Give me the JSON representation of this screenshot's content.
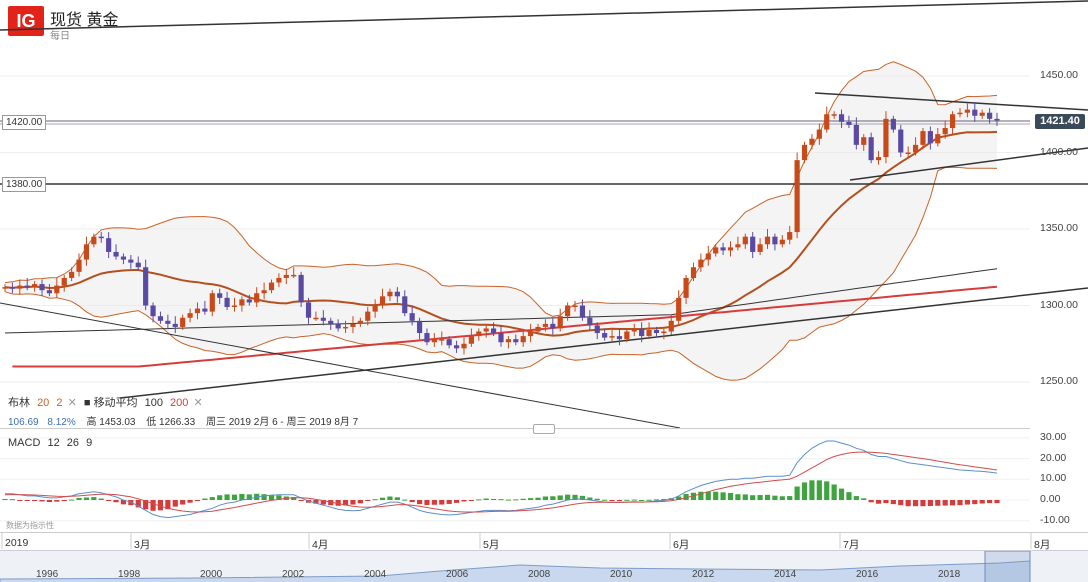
{
  "header": {
    "logo": "IG",
    "title": "现货 黄金",
    "interval": "每日"
  },
  "colors": {
    "bull": "#c84a1a",
    "bear": "#5b4aa2",
    "bb": "#c8642a",
    "ma100": "#333333",
    "ma200": "#d63c3c",
    "macd": "#5b8fc7",
    "signal": "#d44c4c",
    "hist_pos": "#3fa33f",
    "hist_neg": "#d43c3c"
  },
  "labels": {
    "h1420": "1420.00",
    "h1380": "1380.00",
    "price": "1421.40"
  },
  "legend": {
    "bb_name": "布林",
    "bb_p1": "20",
    "bb_p2": "2",
    "ma_name": "移动平均",
    "ma_p1": "100",
    "ma_p2": "200",
    "val1": "106.69",
    "val2": "8.12%",
    "high_lab": "高",
    "high": "1453.03",
    "low_lab": "低",
    "low": "1266.33",
    "range": "周三 2019 2月 6 - 周三 2019 8月 7",
    "macd_name": "MACD",
    "macd_p1": "12",
    "macd_p2": "26",
    "macd_p3": "9",
    "delayed": "数据为指示性"
  },
  "chart_data": [
    {
      "type": "candlestick",
      "title": "现货 黄金",
      "interval": "每日",
      "y_ticks": [
        1250,
        1300,
        1350,
        1400,
        1450
      ],
      "ylim": [
        1225,
        1462
      ],
      "x_ticks": [
        "2019",
        "3月",
        "4月",
        "5月",
        "6月",
        "7月",
        "8月"
      ],
      "last_price": 1421.4,
      "high": 1453.03,
      "low": 1266.33,
      "range": "周三 2019 2月 6 - 周三 2019 8月 7",
      "indicators": [
        "布林 20 2",
        "移动平均 100 200"
      ],
      "closes": [
        1312,
        1311,
        1313,
        1312,
        1314,
        1310,
        1308,
        1313,
        1318,
        1322,
        1330,
        1340,
        1345,
        1344,
        1335,
        1332,
        1330,
        1328,
        1325,
        1300,
        1293,
        1290,
        1288,
        1286,
        1292,
        1295,
        1298,
        1296,
        1308,
        1305,
        1299,
        1300,
        1304,
        1302,
        1308,
        1310,
        1315,
        1318,
        1320,
        1320,
        1302,
        1292,
        1292,
        1290,
        1288,
        1285,
        1286,
        1288,
        1290,
        1296,
        1300,
        1306,
        1309,
        1306,
        1295,
        1290,
        1282,
        1276,
        1278,
        1278,
        1274,
        1272,
        1275,
        1280,
        1283,
        1285,
        1282,
        1276,
        1278,
        1276,
        1280,
        1283,
        1286,
        1288,
        1285,
        1293,
        1300,
        1300,
        1292,
        1287,
        1282,
        1279,
        1280,
        1278,
        1283,
        1285,
        1280,
        1284,
        1282,
        1283,
        1290,
        1305,
        1318,
        1325,
        1330,
        1334,
        1338,
        1336,
        1338,
        1340,
        1345,
        1335,
        1340,
        1345,
        1340,
        1343,
        1348,
        1395,
        1405,
        1409,
        1415,
        1425,
        1425,
        1420,
        1418,
        1405,
        1410,
        1395,
        1397,
        1422,
        1415,
        1400,
        1400,
        1405,
        1414,
        1406,
        1412,
        1416,
        1425,
        1426,
        1428,
        1424,
        1426,
        1422,
        1421.4
      ],
      "macd": [
        3,
        3,
        2.5,
        2,
        2,
        1.5,
        1,
        1,
        1.5,
        2,
        3,
        3.5,
        4,
        3.5,
        2.5,
        1.5,
        0,
        -1,
        -3,
        -5,
        -7,
        -8,
        -8.5,
        -8,
        -7.5,
        -7,
        -6,
        -5,
        -4,
        -2.5,
        -1.5,
        -1,
        0,
        0.5,
        1.5,
        2,
        2.3,
        2.5,
        2.5,
        2.5,
        1,
        -0.5,
        -1.5,
        -2.5,
        -3.5,
        -4.5,
        -5,
        -5.2,
        -5,
        -4,
        -3,
        -2,
        -1,
        -1,
        -2,
        -3.5,
        -5,
        -6,
        -6.5,
        -7,
        -7.2,
        -7,
        -6.5,
        -6,
        -5.5,
        -5,
        -5,
        -5,
        -5.2,
        -5,
        -4.5,
        -4,
        -3.5,
        -2.5,
        -2,
        -1,
        0,
        0.5,
        0.5,
        0,
        -0.5,
        -1,
        -1.2,
        -1.2,
        -1,
        -0.8,
        -1,
        -0.8,
        -0.5,
        -0.2,
        0.5,
        2,
        4,
        5.5,
        7,
        8,
        9,
        9.5,
        10,
        10,
        10.5,
        10.5,
        11,
        11.5,
        11.5,
        11.5,
        12,
        18,
        22,
        25,
        27,
        28.5,
        28.5,
        27.5,
        26.5,
        25,
        24,
        22,
        21,
        21,
        20,
        19,
        18,
        17.5,
        17,
        16.5,
        16,
        15.5,
        15,
        14.5,
        14.3,
        14,
        13.8,
        13.5,
        13
      ],
      "signal": [
        2.5,
        2.6,
        2.6,
        2.5,
        2.4,
        2.2,
        2,
        1.8,
        1.7,
        1.8,
        2,
        2.3,
        2.6,
        2.8,
        2.8,
        2.6,
        2.1,
        1.5,
        0.6,
        -0.5,
        -1.8,
        -3,
        -4,
        -4.8,
        -5.3,
        -5.7,
        -5.8,
        -5.7,
        -5.4,
        -4.8,
        -4.2,
        -3.6,
        -2.9,
        -2.2,
        -1.5,
        -0.8,
        -0.2,
        0.3,
        0.8,
        1.1,
        1.1,
        0.8,
        0.3,
        -0.3,
        -1,
        -1.7,
        -2.4,
        -3,
        -3.4,
        -3.5,
        -3.4,
        -3.1,
        -2.7,
        -2.3,
        -2.2,
        -2.5,
        -3,
        -3.6,
        -4.2,
        -4.8,
        -5.3,
        -5.6,
        -5.8,
        -5.8,
        -5.8,
        -5.7,
        -5.5,
        -5.4,
        -5.4,
        -5.3,
        -5.1,
        -4.9,
        -4.6,
        -4.2,
        -3.8,
        -3.2,
        -2.6,
        -2,
        -1.5,
        -1.2,
        -1.1,
        -1.1,
        -1.1,
        -1.1,
        -1.1,
        -1,
        -1,
        -0.9,
        -0.8,
        -0.7,
        -0.4,
        0.3,
        1.1,
        2,
        3,
        4,
        5,
        5.8,
        6.6,
        7.2,
        7.8,
        8.2,
        8.6,
        9,
        9.4,
        9.7,
        10.1,
        11.5,
        13.5,
        15.5,
        17.5,
        19.5,
        21,
        22,
        22.7,
        23.1,
        23.2,
        23.1,
        22.8,
        22.5,
        22,
        21.5,
        21,
        20.5,
        20,
        19.4,
        18.8,
        18.2,
        17.6,
        17,
        16.5,
        16,
        15.5,
        15,
        14.5
      ],
      "macd_ticks": [
        -10,
        0,
        10,
        20,
        30
      ],
      "nav_years": [
        "1996",
        "1998",
        "2000",
        "2002",
        "2004",
        "2006",
        "2008",
        "2010",
        "2012",
        "2014",
        "2016",
        "2018"
      ]
    }
  ]
}
